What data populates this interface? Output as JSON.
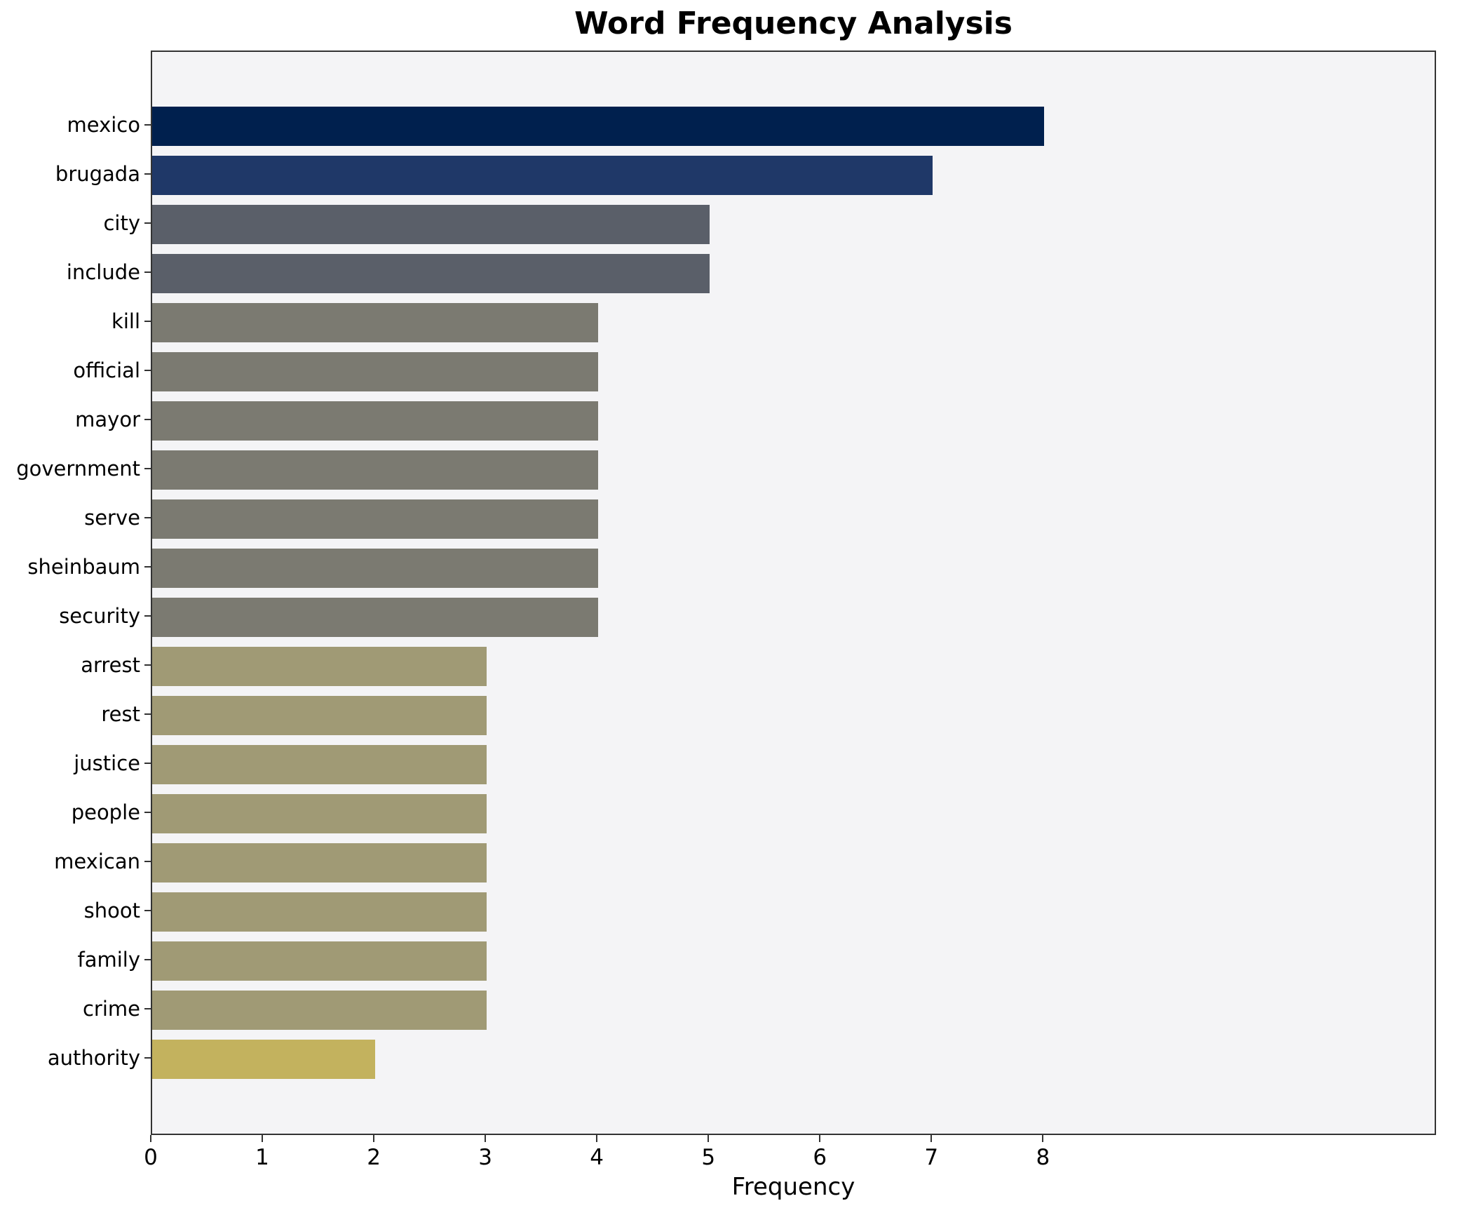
{
  "chart_data": {
    "type": "bar",
    "orientation": "horizontal",
    "title": "Word Frequency Analysis",
    "xlabel": "Frequency",
    "ylabel": "",
    "xlim": [
      0,
      11.5
    ],
    "xticks": [
      "0",
      "1",
      "2",
      "3",
      "4",
      "5",
      "6",
      "7",
      "8"
    ],
    "xtick_values": [
      0,
      1,
      2,
      3,
      4,
      5,
      6,
      7,
      8
    ],
    "grid": false,
    "legend": "none",
    "plot_background": "#f4f4f6",
    "categories": [
      "mexico",
      "brugada",
      "city",
      "include",
      "kill",
      "official",
      "mayor",
      "government",
      "serve",
      "sheinbaum",
      "security",
      "arrest",
      "rest",
      "justice",
      "people",
      "mexican",
      "shoot",
      "family",
      "crime",
      "authority"
    ],
    "values": [
      8,
      7,
      5,
      5,
      4,
      4,
      4,
      4,
      4,
      4,
      4,
      3,
      3,
      3,
      3,
      3,
      3,
      3,
      3,
      2
    ],
    "bar_colors": [
      "#00204e",
      "#1f3868",
      "#5a5f69",
      "#5a5f69",
      "#7b7a71",
      "#7b7a71",
      "#7b7a71",
      "#7b7a71",
      "#7b7a71",
      "#7b7a71",
      "#7b7a71",
      "#a09a75",
      "#a09a75",
      "#a09a75",
      "#a09a75",
      "#a09a75",
      "#a09a75",
      "#a09a75",
      "#a09a75",
      "#c3b25e"
    ]
  }
}
